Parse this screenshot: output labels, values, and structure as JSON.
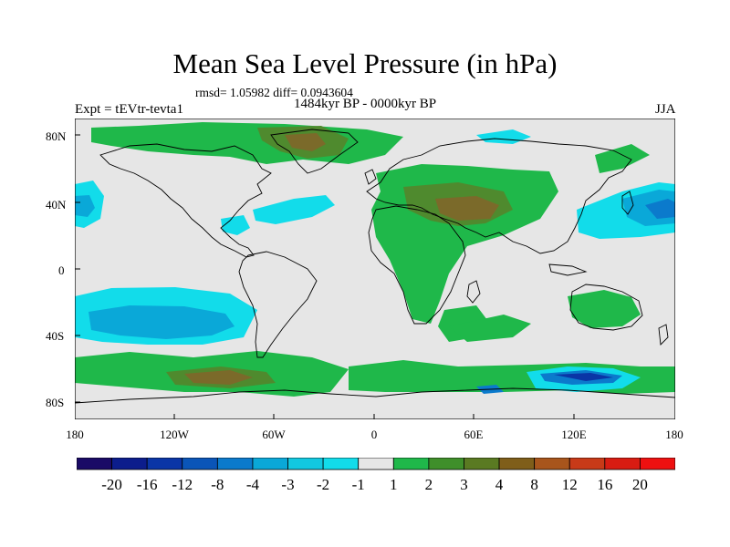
{
  "title": "Mean Sea Level Pressure (in hPa)",
  "stats": "rmsd= 1.05982 diff= 0.0943604",
  "experiment": "Expt = tEVtr-tevta1",
  "period": "1484kyr BP - 0000kyr BP",
  "season": "JJA",
  "lat_labels": [
    "80N",
    "40N",
    "0",
    "40S",
    "80S"
  ],
  "lon_labels": [
    "180",
    "120W",
    "60W",
    "0",
    "60E",
    "120E",
    "180"
  ],
  "colorbar": {
    "labels": [
      "-20",
      "-16",
      "-12",
      "-8",
      "-4",
      "-3",
      "-2",
      "-1",
      "1",
      "2",
      "3",
      "4",
      "8",
      "12",
      "16",
      "20"
    ],
    "colors": [
      "#1a0a66",
      "#0c1d8c",
      "#0a35a6",
      "#0a55b8",
      "#0b7acc",
      "#0aa8d8",
      "#12c8e0",
      "#12dcea",
      "#e6e6e6",
      "#1fb84a",
      "#3f8f2a",
      "#5a7a22",
      "#7f5e1a",
      "#a8551c",
      "#c83a18",
      "#d81c12",
      "#ee1010"
    ]
  },
  "colors": {
    "land_outline": "#000000",
    "neutral": "#e6e6e6",
    "green": "#1fb84a",
    "dark_green": "#4f8a2e",
    "brown": "#7b6a2a",
    "light_blue": "#12dcea",
    "cyan": "#0aa8d8",
    "blue": "#0b7acc"
  }
}
